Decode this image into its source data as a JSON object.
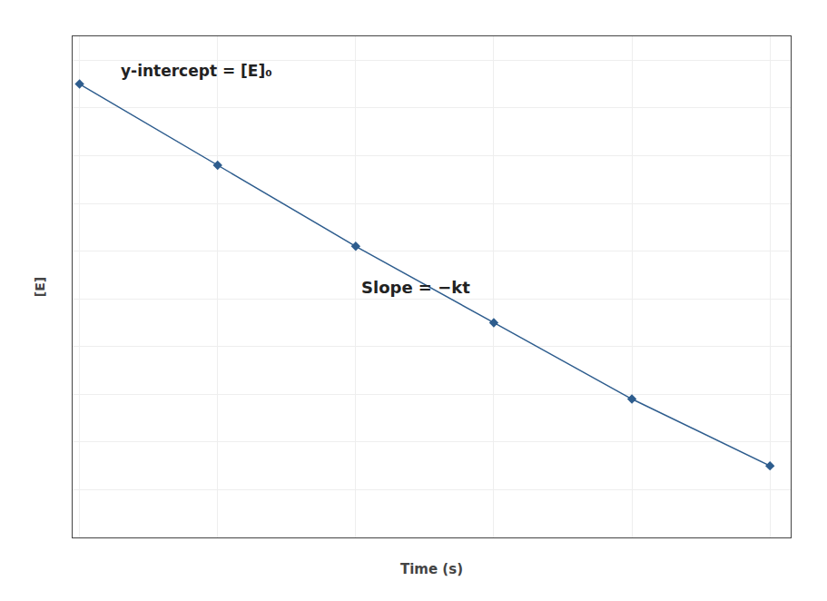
{
  "chart_data": {
    "type": "line",
    "x": [
      0,
      1,
      2,
      3,
      4,
      5
    ],
    "values": [
      9.5,
      7.8,
      6.1,
      4.5,
      2.9,
      1.5
    ],
    "xlabel": "Time (s)",
    "ylabel": "[E]",
    "xlim": [
      -0.05,
      5.15
    ],
    "ylim": [
      0.0,
      10.5
    ],
    "xticks": [
      0,
      1,
      2,
      3,
      4,
      5
    ],
    "yticks": [
      0,
      1,
      2,
      3,
      4,
      5,
      6,
      7,
      8,
      9,
      10
    ],
    "grid": true,
    "tick_labels": false,
    "color": "#2e5d8e",
    "marker": "diamond",
    "annotations": [
      "y-intercept = [E]₀",
      "Slope = −kt"
    ]
  }
}
